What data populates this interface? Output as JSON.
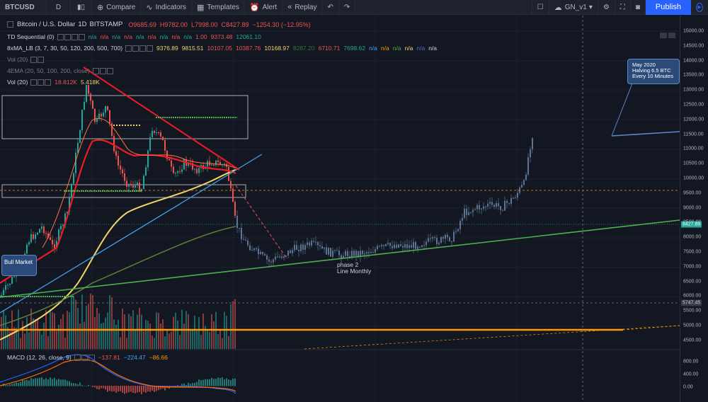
{
  "toolbar": {
    "symbol": "BTCUSD",
    "interval": "D",
    "compare": "Compare",
    "indicators": "Indicators",
    "templates": "Templates",
    "alert": "Alert",
    "replay": "Replay",
    "layout": "GN_v1",
    "publish": "Publish"
  },
  "legend": {
    "title": "Bitcoin / U.S. Dollar",
    "interval": "1D",
    "exchange": "BITSTAMP",
    "open": "O9685.69",
    "high": "H9782.00",
    "low": "L7998.00",
    "close": "C8427.89",
    "change": "−1254.30 (−12.95%)",
    "td_name": "TD Sequential (0)",
    "td_values": [
      "n/a",
      "n/a",
      "n/a",
      "n/a",
      "n/a",
      "n/a",
      "n/a",
      "n/a",
      "n/a",
      "1.00",
      "9373.48",
      "12061.10"
    ],
    "ma_name": "8xMA_LB (3, 7, 30, 50, 120, 200, 500, 700)",
    "ma_values": [
      "9376.89",
      "9815.51",
      "10107.05",
      "10387.76",
      "10168.97",
      "8287.20",
      "6710.71",
      "7698.62",
      "n/a",
      "n/a",
      "n/a",
      "n/a",
      "n/a",
      "n/a"
    ],
    "vol1_name": "Vol (20)",
    "ema_name": "4EMA (20, 50, 100, 200, close)",
    "vol2_name": "Vol (20)",
    "vol2_values": [
      "18.812K",
      "5.418K"
    ],
    "macd_name": "MACD (12, 26, close, 9)",
    "macd_values": [
      "−137.81",
      "−224.47",
      "−86.66"
    ]
  },
  "notes": {
    "bull_market": "Bull Market",
    "halving": [
      "May 2020",
      "Halving 6.5 BTC",
      "Every 10 Minutes"
    ],
    "phase": [
      "phase 2",
      "Line Monthly"
    ]
  },
  "price_axis": {
    "ticks": [
      "15000.00",
      "14500.00",
      "14000.00",
      "13500.00",
      "13000.00",
      "12500.00",
      "12000.00",
      "11500.00",
      "11000.00",
      "10500.00",
      "10000.00",
      "9500.00",
      "9000.00",
      "8500.00",
      "8000.00",
      "7500.00",
      "7000.00",
      "6500.00",
      "6000.00",
      "5500.00",
      "5000.00",
      "4500.00"
    ],
    "last_price": "8427.89",
    "crosshair_price": "5747.45",
    "macd_ticks": [
      "800.00",
      "400.00",
      "0.00"
    ]
  },
  "colors": {
    "background": "#131722",
    "up": "#26a69a",
    "down": "#ef5350",
    "ma_yellow": "#f5d26b",
    "trend_green": "#4caf50",
    "trend_blue": "#42a5f5",
    "support_orange": "#ff9800",
    "accent": "#2962ff"
  }
}
